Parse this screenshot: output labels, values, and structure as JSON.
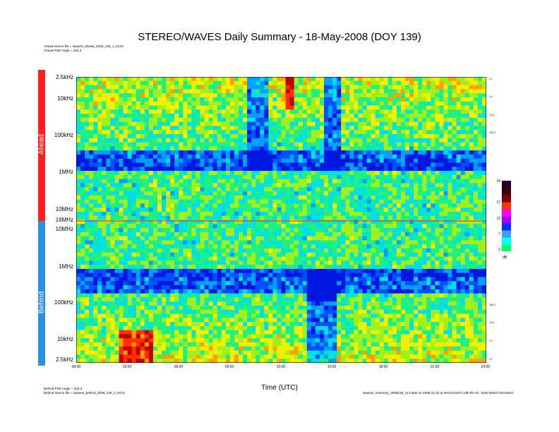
{
  "chart_data": {
    "type": "heatmap",
    "title": "STEREO/WAVES Daily Summary - 18-May-2008 (DOY 139)",
    "xlabel": "Time (UTC)",
    "x_ticks": [
      "00:00",
      "03:00",
      "06:00",
      "09:00",
      "12:00",
      "15:00",
      "18:00",
      "21:00",
      "24:00"
    ],
    "xlim_hours": [
      0,
      24
    ],
    "panels": [
      {
        "name": "Ahead",
        "color": "#ff2020",
        "y_ticks": [
          "2.5kHz",
          "10kHz",
          "100kHz",
          "1MHz",
          "10MHz",
          "16MHz"
        ],
        "y_log_range_hz": [
          2500,
          16000000
        ],
        "right_ticks": [
          "0.1",
          "1.0",
          "10.0",
          "100.0"
        ],
        "source_file": "Ahead source file = swaves_ahead_2008_139_1_04.lin",
        "pse_angle": "Ahead PSE Angle = 333.3"
      },
      {
        "name": "Behind",
        "color": "#2a8fe0",
        "y_ticks": [
          "16MHz",
          "10MHz",
          "1MHz",
          "100kHz",
          "10kHz",
          "2.5kHz"
        ],
        "y_log_range_hz": [
          16000000,
          2500
        ],
        "right_ticks": [
          "100.0",
          "10.0",
          "1.0",
          "0.1"
        ],
        "source_file": "Behind source file = swaves_behind_2008_139_1_04.lin",
        "pse_angle": "Behind PSE Angle = 333.3"
      }
    ],
    "colorbar": {
      "ticks": [
        "24",
        "17",
        "12",
        "7",
        "2"
      ],
      "unit": "dB",
      "range_db": [
        2,
        24
      ],
      "colormap": [
        "#00ff60",
        "#00ffff",
        "#40a0ff",
        "#0030ff",
        "#a000ff",
        "#ff00ff",
        "#ff3000",
        "#800000",
        "#400000",
        "#200030"
      ]
    },
    "footer_right": "swaves_summary_2008139_v3 made on 2008-11-03 at NASA/GSFC with RA-01. Solar Wind Instrument.",
    "features": [
      {
        "panel": "Ahead",
        "start_hours": 10.0,
        "end_hours": 11.2,
        "intensity": "low"
      },
      {
        "panel": "Ahead",
        "start_hours": 14.6,
        "end_hours": 15.6,
        "intensity": "low"
      },
      {
        "panel": "Ahead",
        "start_hours": 12.2,
        "end_hours": 12.8,
        "intensity": "high"
      },
      {
        "panel": "Behind",
        "start_hours": 13.6,
        "end_hours": 15.2,
        "intensity": "low"
      },
      {
        "panel": "Behind",
        "start_hours": 2.5,
        "end_hours": 4.5,
        "intensity": "high"
      }
    ]
  }
}
